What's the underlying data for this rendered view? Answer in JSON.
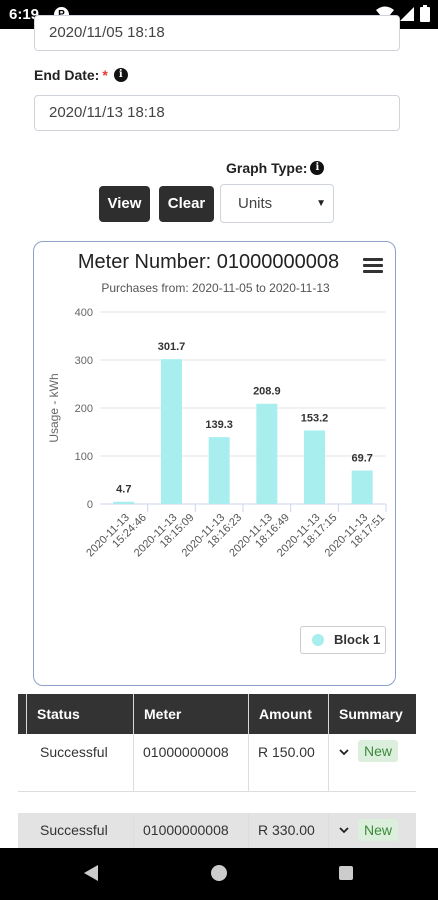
{
  "status_bar": {
    "time": "6:19",
    "app_badge": "P"
  },
  "form": {
    "start_date_value": "2020/11/05 18:18",
    "end_date_label": "End Date:",
    "required_mark": "*",
    "end_date_value": "2020/11/13 18:18",
    "graph_type_label": "Graph Type:",
    "info_glyph": "i",
    "view_label": "View",
    "clear_label": "Clear",
    "graph_type_selected": "Units",
    "caret": "▼"
  },
  "chart": {
    "title": "Meter Number: 01000000008",
    "subtitle": "Purchases from: 2020-11-05 to 2020-11-13",
    "legend_label": "Block 1"
  },
  "chart_data": {
    "type": "bar",
    "title": "Meter Number: 01000000008",
    "subtitle": "Purchases from: 2020-11-05 to 2020-11-13",
    "ylabel": "Usage - kWh",
    "ylim": [
      0,
      400
    ],
    "yticks": [
      0,
      100,
      200,
      300,
      400
    ],
    "categories": [
      [
        "2020-11-13",
        "15:24:46"
      ],
      [
        "2020-11-13",
        "18:15:09"
      ],
      [
        "2020-11-13",
        "18:16:23"
      ],
      [
        "2020-11-13",
        "18:16:49"
      ],
      [
        "2020-11-13",
        "18:17:15"
      ],
      [
        "2020-11-13",
        "18:17:51"
      ]
    ],
    "series": [
      {
        "name": "Block 1",
        "values": [
          4.7,
          301.7,
          139.3,
          208.9,
          153.2,
          69.7
        ],
        "color": "#a8eeee"
      }
    ],
    "data_labels": [
      "4.7",
      "301.7",
      "139.3",
      "208.9",
      "153.2",
      "69.7"
    ],
    "grid": true,
    "legend_position": "bottom-right"
  },
  "table": {
    "headers": [
      "Status",
      "Meter",
      "Amount",
      "Summary"
    ],
    "rows": [
      {
        "status": "Successful",
        "meter": "01000000008",
        "amount": "R 150.00",
        "badge": "New"
      },
      {
        "status": "Successful",
        "meter": "01000000008",
        "amount": "R 330.00",
        "badge": "New"
      }
    ]
  },
  "colors": {
    "accent_dark": "#2e2e2e",
    "bar": "#a8eeee",
    "badge_bg": "#dcefdc",
    "badge_text": "#3d8a3d"
  }
}
